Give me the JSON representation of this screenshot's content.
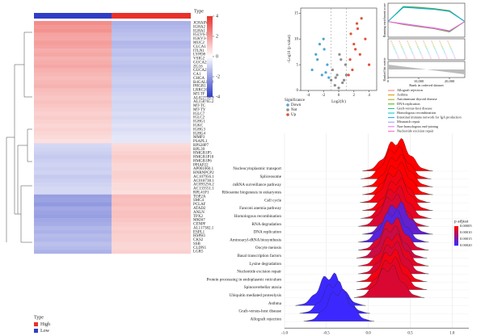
{
  "chart_data": [
    {
      "type": "heatmap",
      "annotation_title": "Type",
      "groups": [
        {
          "name": "Low",
          "color": "#2e3ec5"
        },
        {
          "name": "High",
          "color": "#e8312b"
        }
      ],
      "rows": [
        "JCHAIN",
        "IGHA2",
        "IGHA1",
        "IGLV6-57",
        "IGKV3-11",
        "MUC2",
        "CLCA1",
        "ITLN1",
        "LYPD8",
        "VSIG2",
        "GUCA2A",
        "ZG16",
        "GUCA2B",
        "CA1",
        "CHGA",
        "B4GALNT2",
        "PHGR1",
        "LRRC26",
        "MT-TF",
        "AL022718.1",
        "AL158765.2",
        "MT-TC",
        "MT-TY",
        "IGLC7",
        "IGLC2",
        "IGHG1",
        "IGKC",
        "IGHG3",
        "IGHG4",
        "MMP3",
        "PSAPL1",
        "RPS28P7",
        "RPL39",
        "HMGB1P5",
        "HMGB1P10",
        "HMGB1P6",
        "PPIAP22",
        "AP001060.1",
        "HNRNPCP2",
        "AC107956.1",
        "AC018738.1",
        "AC093256.2",
        "AC133551.1",
        "RPL41P1",
        "TOP2A",
        "SMC4",
        "PCLAF",
        "ATAD2",
        "ANLN",
        "TPX2",
        "MKI67",
        "CENPF",
        "AL117382.1",
        "ESPL1",
        "HSPH1",
        "CKS2",
        "SSB",
        "CLDN1",
        "LGR5"
      ],
      "values": [
        [
          2.2,
          -1.6
        ],
        [
          2.0,
          -1.5
        ],
        [
          2.1,
          -1.4
        ],
        [
          1.8,
          -1.3
        ],
        [
          1.7,
          -1.2
        ],
        [
          1.9,
          -1.5
        ],
        [
          1.8,
          -1.4
        ],
        [
          1.6,
          -1.2
        ],
        [
          1.7,
          -1.3
        ],
        [
          1.5,
          -1.1
        ],
        [
          1.6,
          -1.2
        ],
        [
          1.7,
          -1.3
        ],
        [
          1.5,
          -1.2
        ],
        [
          1.4,
          -1.1
        ],
        [
          1.3,
          -1.0
        ],
        [
          1.4,
          -1.0
        ],
        [
          1.5,
          -1.1
        ],
        [
          1.3,
          -1.0
        ],
        [
          1.2,
          -0.9
        ],
        [
          1.1,
          -0.8
        ],
        [
          1.2,
          -0.9
        ],
        [
          1.1,
          -0.8
        ],
        [
          1.0,
          -0.8
        ],
        [
          0.9,
          -0.7
        ],
        [
          1.0,
          -0.8
        ],
        [
          0.9,
          -0.7
        ],
        [
          0.8,
          -0.6
        ],
        [
          0.9,
          -0.7
        ],
        [
          0.8,
          -0.6
        ],
        [
          0.7,
          -0.5
        ],
        [
          0.6,
          -0.5
        ],
        [
          -0.8,
          0.7
        ],
        [
          -0.9,
          0.8
        ],
        [
          -1.0,
          0.9
        ],
        [
          -1.1,
          1.0
        ],
        [
          -1.0,
          0.9
        ],
        [
          -0.9,
          0.8
        ],
        [
          -1.0,
          0.8
        ],
        [
          -0.9,
          0.9
        ],
        [
          -1.1,
          0.9
        ],
        [
          -1.0,
          0.8
        ],
        [
          -0.9,
          0.7
        ],
        [
          -0.8,
          0.7
        ],
        [
          -0.8,
          0.6
        ],
        [
          -2.0,
          1.3
        ],
        [
          -1.9,
          1.2
        ],
        [
          -2.1,
          1.3
        ],
        [
          -1.8,
          1.1
        ],
        [
          -1.9,
          1.2
        ],
        [
          -2.0,
          1.2
        ],
        [
          -1.8,
          1.1
        ],
        [
          -1.7,
          1.0
        ],
        [
          -1.5,
          0.9
        ],
        [
          -1.6,
          1.0
        ],
        [
          -1.4,
          0.9
        ],
        [
          -1.5,
          0.9
        ],
        [
          -1.3,
          0.8
        ],
        [
          -1.4,
          0.8
        ],
        [
          -1.6,
          0.9
        ]
      ],
      "zlim": [
        -4,
        4
      ],
      "zticks": [
        4,
        2,
        0,
        -2,
        -4
      ]
    },
    {
      "type": "scatter",
      "xlabel": "Log2(fc)",
      "ylabel": "−Log10 (p value)",
      "legend_title": "Significance",
      "xlim": [
        -5,
        5
      ],
      "ylim": [
        0,
        16
      ],
      "xticks": [
        -4,
        -2,
        0,
        2,
        4
      ],
      "yticks": [
        0,
        5,
        10,
        15
      ],
      "series": [
        {
          "name": "Down",
          "color": "#4da6d6",
          "x": [
            -3.5,
            -2.8,
            -2.2,
            -1.9,
            -1.5,
            -1.3,
            -2.5,
            -1.7,
            -3.0,
            -2.0
          ],
          "values": [
            4,
            6,
            3,
            8,
            5,
            2.5,
            9,
            3.5,
            7,
            10
          ]
        },
        {
          "name": "Not",
          "color": "#8c8c8c",
          "x": [
            -1,
            -0.5,
            0,
            0.5,
            1,
            -0.8,
            0.3,
            0.7,
            -0.2,
            0.9,
            -0.4,
            0.1
          ],
          "values": [
            2,
            1,
            0.5,
            1.5,
            3,
            4,
            6,
            2,
            3,
            5,
            2.5,
            7
          ]
        },
        {
          "name": "Up",
          "color": "#e0533a",
          "x": [
            1.5,
            2,
            2.5,
            3,
            1.8,
            2.2,
            3.5,
            1.3,
            2.8,
            4,
            2.4,
            1.6
          ],
          "values": [
            6,
            9,
            12,
            14,
            4,
            8,
            10,
            3,
            7,
            5,
            13,
            11
          ]
        }
      ]
    },
    {
      "type": "line",
      "ylabel": "Running enrichment score",
      "y2label": "Ranked list metric",
      "xlabel": "Rank in ordered dataset",
      "x": [
        0,
        5000,
        10000,
        15000,
        20000,
        25000
      ],
      "xlim": [
        0,
        25000
      ],
      "ylim": [
        -0.6,
        0.7
      ],
      "xticks": [
        0,
        {
          "value": 10000,
          "label": "10,000"
        },
        {
          "value": 20000,
          "label": "20,000"
        }
      ],
      "series": [
        {
          "name": "Allograft rejection",
          "color": "#f8766d",
          "values": [
            0,
            0.58,
            0.55,
            0.5,
            0.42,
            0
          ]
        },
        {
          "name": "Asthma",
          "color": "#d89000",
          "values": [
            0,
            0.55,
            0.53,
            0.48,
            0.4,
            0
          ]
        },
        {
          "name": "Autoimmune thyroid disease",
          "color": "#a3a500",
          "values": [
            0,
            0.56,
            0.52,
            0.47,
            0.38,
            0
          ]
        },
        {
          "name": "DNA replication",
          "color": "#39b600",
          "values": [
            0,
            -0.12,
            -0.2,
            -0.28,
            -0.4,
            0
          ]
        },
        {
          "name": "Graft-versus-host disease",
          "color": "#00bf7d",
          "values": [
            0,
            0.57,
            0.54,
            0.49,
            0.41,
            0
          ]
        },
        {
          "name": "Homologous recombination",
          "color": "#00bfc4",
          "values": [
            0,
            -0.1,
            -0.18,
            -0.26,
            -0.38,
            0
          ]
        },
        {
          "name": "Intestinal immune network for IgA production",
          "color": "#00b0f6",
          "values": [
            0,
            0.54,
            0.5,
            0.46,
            0.39,
            0
          ]
        },
        {
          "name": "Mismatch repair",
          "color": "#9590ff",
          "values": [
            0,
            -0.08,
            -0.16,
            -0.25,
            -0.36,
            0
          ]
        },
        {
          "name": "Non-homologous end-joining",
          "color": "#e76bf3",
          "values": [
            0,
            -0.09,
            -0.17,
            -0.24,
            -0.35,
            0
          ]
        },
        {
          "name": "Nucleotide excision repair",
          "color": "#ff62bc",
          "values": [
            0,
            -0.11,
            -0.19,
            -0.27,
            -0.37,
            0
          ]
        }
      ]
    },
    {
      "type": "ridge",
      "legend_title": "p adjust",
      "categories": [
        "Nucleocytoplasmic transport",
        "Spliceosome",
        "mRNA surveillance pathway",
        "Ribosome biogenesis in eukaryotes",
        "Cell cycle",
        "Fanconi anemia pathway",
        "Homologous recombination",
        "RNA degradation",
        "DNA replication",
        "Aminoacyl-tRNA biosynthesis",
        "Oocyte meiosis",
        "Basal transcription factors",
        "Lysine degradation",
        "Nucleotide excision repair",
        "Protein processing in endoplasmic reticulum",
        "Spinocerebellar ataxia",
        "Ubiquitin mediated proteolysis",
        "Asthma",
        "Graft-versus-host disease",
        "Allograft rejection"
      ],
      "values": [
        0.35,
        0.33,
        0.35,
        0.35,
        0.32,
        0.35,
        0.33,
        0.3,
        0.35,
        0.3,
        0.3,
        0.28,
        0.3,
        0.3,
        0.28,
        0.28,
        0.25,
        -0.45,
        -0.4,
        -0.35
      ],
      "p_adjust": [
        5e-05,
        5e-05,
        5e-05,
        5e-05,
        6e-05,
        6e-05,
        7e-05,
        8e-05,
        0.00017,
        0.00018,
        8e-05,
        9e-05,
        7e-05,
        8e-05,
        6e-05,
        7e-05,
        8e-05,
        0.0002,
        0.0002,
        0.0002
      ],
      "xlim": [
        -1,
        1.2
      ],
      "xticks": [
        {
          "value": -1,
          "label": "-1.0"
        },
        -0.5,
        {
          "value": 0,
          "label": "0.0"
        },
        0.5,
        {
          "value": 1,
          "label": "1.0"
        }
      ],
      "plim": [
        5e-05,
        0.0002
      ],
      "pticks": [
        {
          "value": 5e-05,
          "label": "0.00005"
        },
        {
          "value": 0.0001,
          "label": "0.00010"
        },
        {
          "value": 0.00015,
          "label": "0.00015"
        },
        {
          "value": 0.0002,
          "label": "0.00020"
        }
      ]
    }
  ]
}
